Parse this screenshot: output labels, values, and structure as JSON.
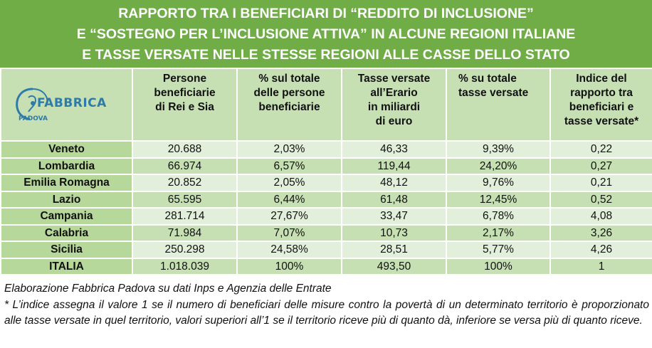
{
  "title": {
    "lines": [
      "RAPPORTO TRA I BENEFICIARI DI “REDDITO DI INCLUSIONE”",
      "E “SOSTEGNO PER L’INCLUSIONE ATTIVA” IN ALCUNE REGIONI ITALIANE",
      "E TASSE VERSATE NELLE STESSE REGIONI ALLE CASSE DELLO STATO"
    ]
  },
  "logo": {
    "word": "FABBRICA",
    "sub": "PADOVA"
  },
  "colors": {
    "title_bg": "#70ad47",
    "header_bg": "#c6e0b4",
    "region_bg": "#b7d89b",
    "row_light": "#e2efda",
    "row_dark": "#c6e0b4",
    "logo_blue": "#2e7aa8"
  },
  "chart_data": {
    "type": "table",
    "columns": [
      [
        "Persone",
        "beneficiarie",
        "di Rei e Sia"
      ],
      [
        "% sul totale",
        "delle persone",
        "beneficiarie"
      ],
      [
        "Tasse versate",
        "all’Erario",
        "in miliardi",
        "di euro"
      ],
      [
        "% su totale",
        "tasse versate"
      ],
      [
        "Indice del",
        "rapporto tra",
        "beneficiari e",
        "tasse versate*"
      ]
    ],
    "rows": [
      {
        "region": "Veneto",
        "values": [
          "20.688",
          "2,03%",
          "46,33",
          "9,39%",
          "0,22"
        ]
      },
      {
        "region": "Lombardia",
        "values": [
          "66.974",
          "6,57%",
          "119,44",
          "24,20%",
          "0,27"
        ]
      },
      {
        "region": "Emilia Romagna",
        "values": [
          "20.852",
          "2,05%",
          "48,12",
          "9,76%",
          "0,21"
        ]
      },
      {
        "region": "Lazio",
        "values": [
          "65.595",
          "6,44%",
          "61,48",
          "12,45%",
          "0,52"
        ]
      },
      {
        "region": "Campania",
        "values": [
          "281.714",
          "27,67%",
          "33,47",
          "6,78%",
          "4,08"
        ]
      },
      {
        "region": "Calabria",
        "values": [
          "71.984",
          "7,07%",
          "10,73",
          "2,17%",
          "3,26"
        ]
      },
      {
        "region": "Sicilia",
        "values": [
          "250.298",
          "24,58%",
          "28,51",
          "5,77%",
          "4,26"
        ]
      },
      {
        "region": "ITALIA",
        "values": [
          "1.018.039",
          "100%",
          "493,50",
          "100%",
          "1"
        ]
      }
    ]
  },
  "notes": {
    "source": "Elaborazione Fabbrica Padova su dati Inps e Agenzia delle Entrate",
    "footnote": "* L’indice assegna il valore 1 se il numero di beneficiari delle misure contro la povertà di un determinato territorio è proporzionato alle tasse versate in quel territorio, valori superiori all’1 se il territorio riceve più di quanto dà, inferiore se versa più di quanto riceve."
  }
}
